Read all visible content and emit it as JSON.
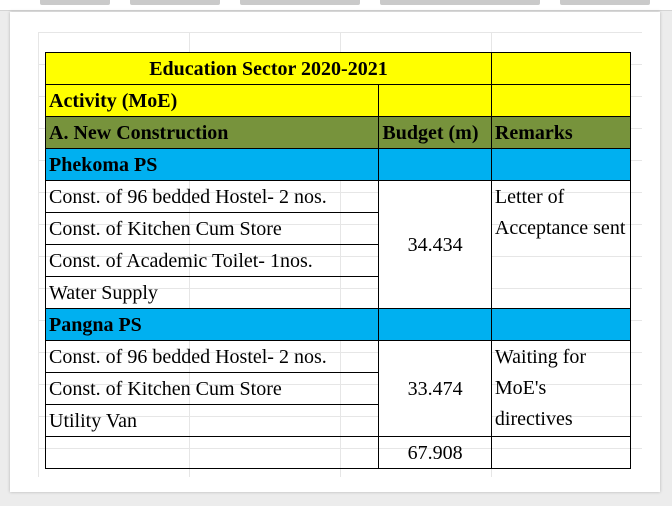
{
  "table": {
    "title": "Education Sector 2020-2021",
    "activity_header": "Activity (MoE)",
    "section_header": "A. New Construction",
    "budget_header": "Budget (m)",
    "remarks_header": "Remarks",
    "groups": [
      {
        "name": "Phekoma PS",
        "items": [
          "Const. of 96 bedded Hostel- 2 nos.",
          "Const. of  Kitchen Cum Store",
          "Const. of Academic Toilet- 1nos.",
          "Water Supply"
        ],
        "budget": "34.434",
        "remarks": "Letter of Acceptance sent"
      },
      {
        "name": "Pangna PS",
        "items": [
          "Const. of 96 bedded Hostel- 2 nos.",
          "Const. of  Kitchen Cum Store",
          "Utility Van"
        ],
        "budget": "33.474",
        "remarks": "Waiting for MoE's directives"
      }
    ],
    "total": "67.908"
  },
  "colors": {
    "title_fill": "#ffff00",
    "section_fill": "#77933c",
    "group_fill": "#00b0f0"
  }
}
